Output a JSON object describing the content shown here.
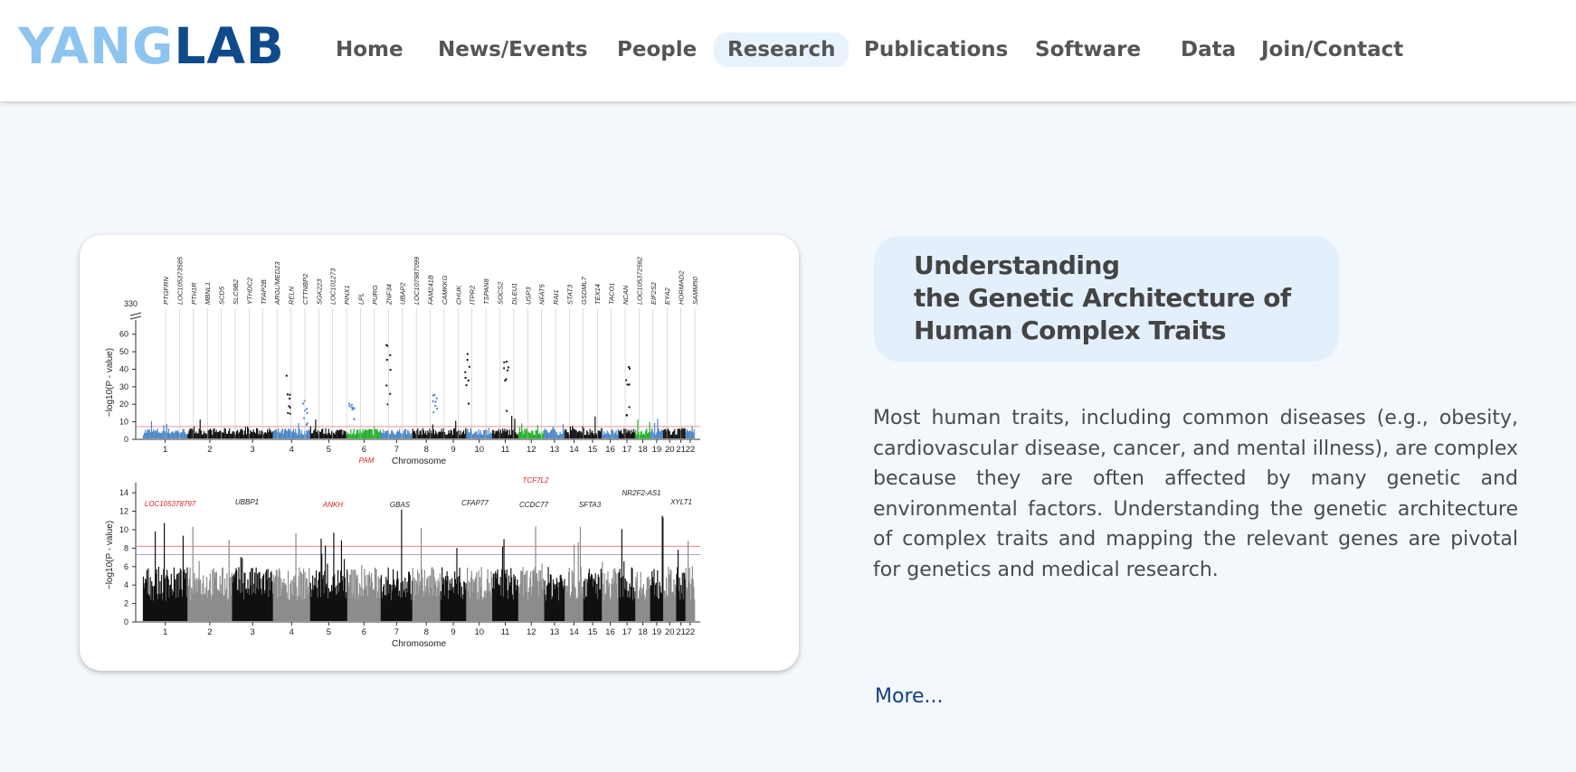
{
  "logo": {
    "part1": "YANG",
    "part2": "LAB"
  },
  "nav": {
    "items": [
      {
        "label": "Home"
      },
      {
        "label": "News/Events"
      },
      {
        "label": "People"
      },
      {
        "label": "Research",
        "active": true
      },
      {
        "label": "Publications"
      },
      {
        "label": "Software"
      },
      {
        "label": "Data"
      },
      {
        "label": "Join/Contact"
      }
    ]
  },
  "research": {
    "title_lines": [
      "Understanding",
      "the Genetic Architecture of",
      "Human Complex Traits"
    ],
    "body": "Most human traits, including common diseases (e.g., obesity, cardiovascular disease, cancer, and mental illness), are complex because they are often affected by many genetic and environmental factors. Understanding the genetic architecture of complex traits and mapping the relevant genes are pivotal for genetics and medical research.",
    "more_label": "More..."
  },
  "figure": {
    "chromosomes": [
      "1",
      "2",
      "3",
      "4",
      "5",
      "6",
      "7",
      "8",
      "9",
      "10",
      "11",
      "12",
      "13",
      "14",
      "15",
      "16",
      "17",
      "18",
      "19",
      "20",
      "21",
      "22"
    ],
    "xlabel": "Chromosome",
    "ylabel": "−log10(P - value)",
    "top_panel": {
      "yticks": [
        "0",
        "10",
        "20",
        "30",
        "40",
        "50",
        "60"
      ],
      "ybreak_label": "330",
      "gene_labels": [
        "PTGFRN",
        "LOC105373585",
        "PTH1R",
        "MBNL1",
        "SCD5",
        "SLC9B2",
        "YTHDC2",
        "TFAP2B",
        "ARGL/MED23",
        "RELN",
        "CTTNBP2",
        "SGK223",
        "LOC101273",
        "PINX1",
        "LPL",
        "PURG",
        "ZNF34",
        "UBAP2",
        "LOC107987099",
        "FAM241B",
        "CAMKKG",
        "CHUK",
        "ITPR2",
        "TSPAN8",
        "SOCS2",
        "DLEU1",
        "USP3",
        "NFAT5",
        "RAI1",
        "STAT3",
        "GSDML7",
        "TEX14",
        "TACO1",
        "NCAN",
        "LOC105372562",
        "EIF2S2",
        "EYA2",
        "HORMAD2",
        "SAMM50"
      ]
    },
    "bottom_panel": {
      "yticks": [
        "0",
        "2",
        "4",
        "6",
        "8",
        "10",
        "12",
        "14"
      ],
      "gene_labels": [
        {
          "name": "LOC105378797",
          "highlight": true
        },
        {
          "name": "UBBP1",
          "highlight": false
        },
        {
          "name": "ANKH",
          "highlight": true
        },
        {
          "name": "PAM",
          "highlight": true
        },
        {
          "name": "GBAS",
          "highlight": false
        },
        {
          "name": "CFAP77",
          "highlight": false
        },
        {
          "name": "TCF7L2",
          "highlight": true
        },
        {
          "name": "CCDC77",
          "highlight": false
        },
        {
          "name": "SFTA3",
          "highlight": false
        },
        {
          "name": "NR2F2-AS1",
          "highlight": false
        },
        {
          "name": "XYLT1",
          "highlight": false
        }
      ]
    }
  },
  "colors": {
    "logo_light": "#8ec5f0",
    "logo_dark": "#0f4a8a",
    "nav_active_bg": "#e7f2fc",
    "title_bg": "#e3f0fc",
    "link": "#14407a",
    "highlight_red": "#e02020",
    "manhattan_blue": "#4a86c8",
    "manhattan_green": "#22b22a",
    "manhattan_gray": "#8c8c8c"
  }
}
